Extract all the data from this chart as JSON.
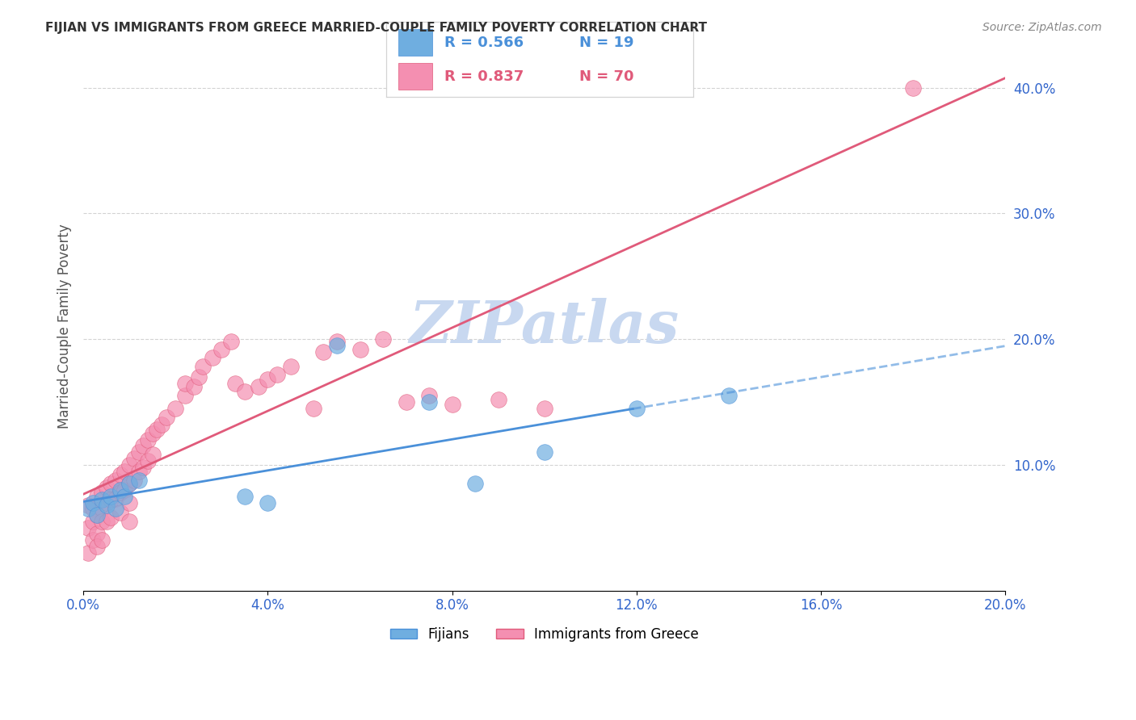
{
  "title": "FIJIAN VS IMMIGRANTS FROM GREECE MARRIED-COUPLE FAMILY POVERTY CORRELATION CHART",
  "source": "Source: ZipAtlas.com",
  "xlabel": "",
  "ylabel": "Married-Couple Family Poverty",
  "xlim": [
    0.0,
    0.2
  ],
  "ylim": [
    0.0,
    0.42
  ],
  "xticks": [
    0.0,
    0.04,
    0.08,
    0.12,
    0.16,
    0.2
  ],
  "yticks_right": [
    0.1,
    0.2,
    0.3,
    0.4
  ],
  "legend_r1": "R = 0.566",
  "legend_n1": "N = 19",
  "legend_r2": "R = 0.837",
  "legend_n2": "N = 70",
  "fijian_color": "#6faee0",
  "greece_color": "#f48fb1",
  "fijian_line_color": "#4a90d9",
  "greece_line_color": "#e05a7a",
  "watermark": "ZIPatlas",
  "watermark_color": "#c8d8f0",
  "fijian_scatter_x": [
    0.001,
    0.002,
    0.003,
    0.004,
    0.005,
    0.006,
    0.007,
    0.008,
    0.009,
    0.01,
    0.012,
    0.035,
    0.04,
    0.055,
    0.075,
    0.085,
    0.1,
    0.12,
    0.14
  ],
  "fijian_scatter_y": [
    0.065,
    0.07,
    0.06,
    0.072,
    0.068,
    0.075,
    0.065,
    0.08,
    0.075,
    0.085,
    0.088,
    0.075,
    0.07,
    0.195,
    0.15,
    0.085,
    0.11,
    0.145,
    0.155
  ],
  "greece_scatter_x": [
    0.001,
    0.001,
    0.001,
    0.002,
    0.002,
    0.002,
    0.003,
    0.003,
    0.003,
    0.003,
    0.004,
    0.004,
    0.004,
    0.004,
    0.005,
    0.005,
    0.005,
    0.006,
    0.006,
    0.006,
    0.007,
    0.007,
    0.008,
    0.008,
    0.008,
    0.009,
    0.009,
    0.01,
    0.01,
    0.01,
    0.01,
    0.011,
    0.011,
    0.012,
    0.012,
    0.013,
    0.013,
    0.014,
    0.014,
    0.015,
    0.015,
    0.016,
    0.017,
    0.018,
    0.02,
    0.022,
    0.022,
    0.024,
    0.025,
    0.026,
    0.028,
    0.03,
    0.032,
    0.033,
    0.035,
    0.038,
    0.04,
    0.042,
    0.045,
    0.05,
    0.052,
    0.055,
    0.06,
    0.065,
    0.07,
    0.075,
    0.08,
    0.09,
    0.1,
    0.18
  ],
  "greece_scatter_y": [
    0.068,
    0.05,
    0.03,
    0.065,
    0.055,
    0.04,
    0.075,
    0.06,
    0.045,
    0.035,
    0.078,
    0.065,
    0.055,
    0.04,
    0.082,
    0.07,
    0.055,
    0.085,
    0.072,
    0.058,
    0.088,
    0.073,
    0.092,
    0.078,
    0.062,
    0.095,
    0.08,
    0.1,
    0.085,
    0.07,
    0.055,
    0.105,
    0.088,
    0.11,
    0.095,
    0.115,
    0.098,
    0.12,
    0.103,
    0.125,
    0.108,
    0.128,
    0.132,
    0.138,
    0.145,
    0.155,
    0.165,
    0.162,
    0.17,
    0.178,
    0.185,
    0.192,
    0.198,
    0.165,
    0.158,
    0.162,
    0.168,
    0.172,
    0.178,
    0.145,
    0.19,
    0.198,
    0.192,
    0.2,
    0.15,
    0.155,
    0.148,
    0.152,
    0.145,
    0.4
  ],
  "legend_labels": [
    "Fijians",
    "Immigrants from Greece"
  ]
}
